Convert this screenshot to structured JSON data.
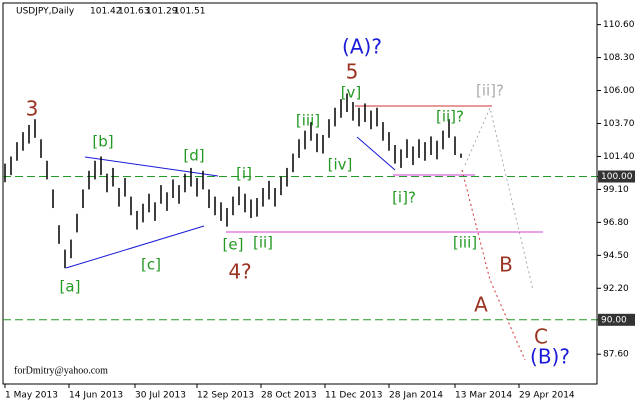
{
  "header": {
    "symbol": "USDJPY,Daily",
    "ohlc": [
      101.42,
      101.63,
      101.29,
      101.51
    ]
  },
  "footer": "forDmitry@yahoo.com",
  "chart_data": {
    "type": "range-bar",
    "color": "#000000",
    "x": [
      0,
      3,
      6,
      9,
      12,
      15,
      18,
      21,
      24,
      27,
      30,
      33,
      36,
      39,
      42,
      45,
      48,
      51,
      54,
      57,
      60,
      63,
      66,
      69,
      72,
      75,
      78,
      81,
      84,
      87,
      90,
      93,
      96,
      99,
      102,
      105,
      108,
      111,
      114,
      117,
      120,
      123,
      126,
      129,
      132,
      135,
      138,
      141,
      144,
      147,
      150,
      153,
      156,
      159,
      162,
      165,
      168,
      171,
      174,
      177,
      180,
      183,
      186,
      189,
      192,
      195,
      198,
      201,
      204,
      207,
      210,
      213,
      216,
      219,
      222,
      225,
      228
    ],
    "high": [
      100.9,
      101.4,
      102.4,
      103.1,
      103.6,
      104.0,
      102.6,
      101.1,
      99.1,
      96.6,
      94.9,
      95.6,
      97.4,
      99.1,
      100.4,
      101.1,
      101.4,
      100.2,
      100.6,
      99.2,
      99.9,
      98.6,
      97.6,
      98.1,
      98.8,
      98.2,
      99.4,
      98.9,
      99.8,
      99.4,
      100.2,
      100.6,
      99.9,
      100.4,
      99.1,
      98.6,
      98.2,
      97.8,
      98.6,
      99.3,
      98.8,
      98.4,
      98.5,
      99.2,
      99.7,
      99.2,
      100.0,
      100.6,
      101.6,
      102.6,
      103.2,
      103.8,
      103.0,
      102.9,
      104.0,
      104.8,
      105.4,
      105.8,
      105.2,
      104.8,
      105.1,
      104.6,
      104.8,
      103.8,
      103.1,
      102.2,
      101.9,
      102.6,
      102.1,
      102.6,
      102.4,
      102.8,
      102.5,
      103.2,
      104.0,
      102.8,
      101.6
    ],
    "low": [
      99.6,
      100.1,
      101.1,
      101.8,
      102.3,
      102.7,
      101.3,
      99.8,
      97.8,
      95.3,
      93.6,
      94.3,
      96.1,
      97.8,
      99.1,
      99.8,
      100.1,
      98.9,
      99.3,
      97.9,
      98.6,
      97.3,
      96.3,
      96.8,
      97.5,
      96.9,
      98.1,
      97.6,
      98.5,
      98.1,
      98.9,
      99.3,
      98.6,
      99.1,
      97.8,
      97.3,
      96.9,
      96.5,
      97.3,
      98.0,
      97.5,
      97.1,
      97.2,
      97.9,
      98.4,
      97.9,
      98.7,
      99.3,
      100.3,
      101.3,
      101.9,
      102.5,
      101.7,
      101.6,
      102.7,
      103.5,
      104.1,
      104.5,
      103.9,
      103.5,
      103.8,
      103.3,
      103.5,
      102.5,
      101.8,
      100.9,
      100.6,
      101.3,
      100.8,
      101.3,
      101.1,
      101.5,
      101.2,
      101.9,
      102.7,
      101.5,
      101.3
    ],
    "xlim": [
      -1,
      296
    ],
    "xticks": [
      {
        "value": 0,
        "label": "1 May 2013"
      },
      {
        "value": 32,
        "label": "14 Jun 2013"
      },
      {
        "value": 65,
        "label": "30 Jul 2013"
      },
      {
        "value": 96,
        "label": "12 Sep 2013"
      },
      {
        "value": 128,
        "label": "28 Oct 2013"
      },
      {
        "value": 160,
        "label": "11 Dec 2013"
      },
      {
        "value": 192,
        "label": "28 Jan 2014"
      },
      {
        "value": 225,
        "label": "13 Mar 2014"
      },
      {
        "value": 257,
        "label": "29 Apr 2014"
      }
    ],
    "ylim": [
      85.52,
      112.11
    ],
    "yticks": [
      {
        "value": 110.6,
        "label": "110.60"
      },
      {
        "value": 108.3,
        "label": "108.30"
      },
      {
        "value": 106,
        "label": "106.00"
      },
      {
        "value": 103.7,
        "label": "103.70"
      },
      {
        "value": 101.4,
        "label": "101.40"
      },
      {
        "value": 100,
        "label": "100.00"
      },
      {
        "value": 99.1,
        "label": "99.10"
      },
      {
        "value": 96.8,
        "label": "96.80"
      },
      {
        "value": 94.5,
        "label": "94.50"
      },
      {
        "value": 92.2,
        "label": "92.20"
      },
      {
        "value": 90,
        "label": "90.00"
      },
      {
        "value": 87.6,
        "label": "87.60"
      }
    ],
    "levels": [
      {
        "value": 100,
        "label": "100.00"
      },
      {
        "value": 90,
        "label": "90.00"
      }
    ],
    "annotations": [
      {
        "text": "3",
        "color": "#9b3322"
      },
      {
        "text": "[b]",
        "color": "#229922"
      },
      {
        "text": "[d]",
        "color": "#229922"
      },
      {
        "text": "[i]",
        "color": "#229922"
      },
      {
        "text": "[a]",
        "color": "#229922"
      },
      {
        "text": "[c]",
        "color": "#229922"
      },
      {
        "text": "[e]",
        "color": "#229922"
      },
      {
        "text": "[ii]",
        "color": "#229922"
      },
      {
        "text": "4?",
        "color": "#9b3322"
      },
      {
        "text": "[iii]",
        "color": "#229922"
      },
      {
        "text": "[iv]",
        "color": "#229922"
      },
      {
        "text": "[v]",
        "color": "#229922"
      },
      {
        "text": "5",
        "color": "#9b3322"
      },
      {
        "text": "(A)?",
        "color": "#1a1ad8"
      },
      {
        "text": "[i]?",
        "color": "#229922"
      },
      {
        "text": "[ii]?",
        "color": "#229922"
      },
      {
        "text": "[ii]?",
        "color": "#aaaaaa"
      },
      {
        "text": "[iii]",
        "color": "#229922"
      },
      {
        "text": "B",
        "color": "#9b3322"
      },
      {
        "text": "A",
        "color": "#9b3322"
      },
      {
        "text": "C",
        "color": "#9b3322"
      },
      {
        "text": "(B)?",
        "color": "#1a1ad8"
      }
    ]
  }
}
